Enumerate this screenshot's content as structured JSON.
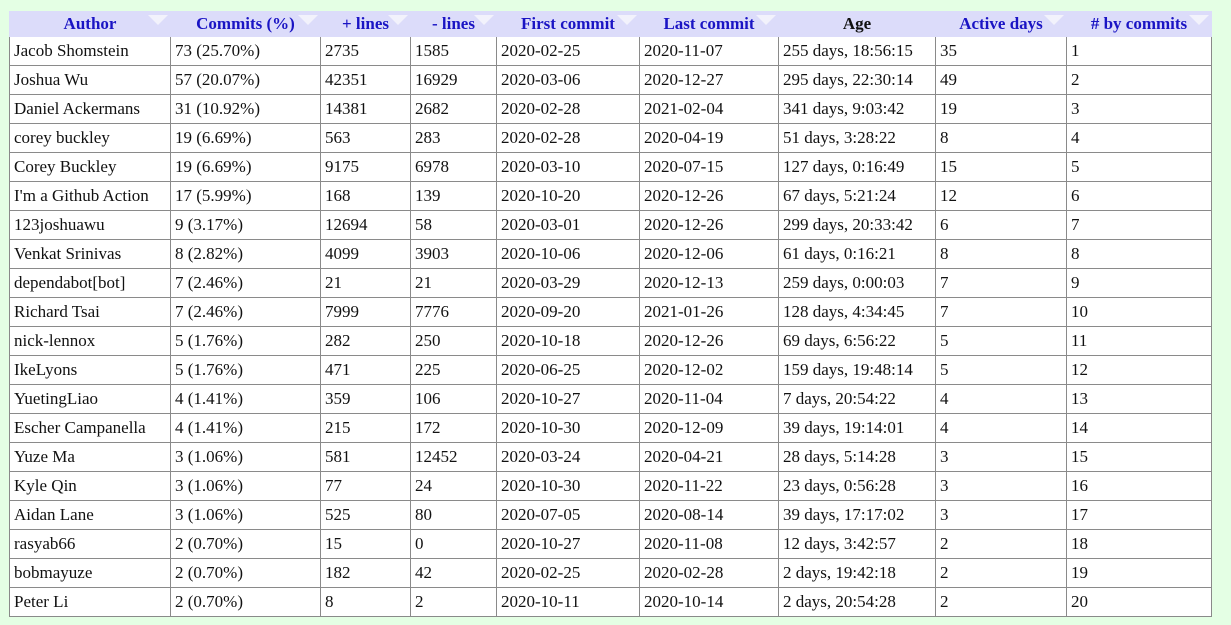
{
  "table": {
    "headers": [
      "Author",
      "Commits (%)",
      "+ lines",
      "- lines",
      "First commit",
      "Last commit",
      "Age",
      "Active days",
      "# by commits"
    ],
    "rows": [
      [
        "Jacob Shomstein",
        "73 (25.70%)",
        "2735",
        "1585",
        "2020-02-25",
        "2020-11-07",
        "255 days, 18:56:15",
        "35",
        "1"
      ],
      [
        "Joshua Wu",
        "57 (20.07%)",
        "42351",
        "16929",
        "2020-03-06",
        "2020-12-27",
        "295 days, 22:30:14",
        "49",
        "2"
      ],
      [
        "Daniel Ackermans",
        "31 (10.92%)",
        "14381",
        "2682",
        "2020-02-28",
        "2021-02-04",
        "341 days, 9:03:42",
        "19",
        "3"
      ],
      [
        "corey buckley",
        "19 (6.69%)",
        "563",
        "283",
        "2020-02-28",
        "2020-04-19",
        "51 days, 3:28:22",
        "8",
        "4"
      ],
      [
        "Corey Buckley",
        "19 (6.69%)",
        "9175",
        "6978",
        "2020-03-10",
        "2020-07-15",
        "127 days, 0:16:49",
        "15",
        "5"
      ],
      [
        "I'm a Github Action",
        "17 (5.99%)",
        "168",
        "139",
        "2020-10-20",
        "2020-12-26",
        "67 days, 5:21:24",
        "12",
        "6"
      ],
      [
        "123joshuawu",
        "9 (3.17%)",
        "12694",
        "58",
        "2020-03-01",
        "2020-12-26",
        "299 days, 20:33:42",
        "6",
        "7"
      ],
      [
        "Venkat Srinivas",
        "8 (2.82%)",
        "4099",
        "3903",
        "2020-10-06",
        "2020-12-06",
        "61 days, 0:16:21",
        "8",
        "8"
      ],
      [
        "dependabot[bot]",
        "7 (2.46%)",
        "21",
        "21",
        "2020-03-29",
        "2020-12-13",
        "259 days, 0:00:03",
        "7",
        "9"
      ],
      [
        "Richard Tsai",
        "7 (2.46%)",
        "7999",
        "7776",
        "2020-09-20",
        "2021-01-26",
        "128 days, 4:34:45",
        "7",
        "10"
      ],
      [
        "nick-lennox",
        "5 (1.76%)",
        "282",
        "250",
        "2020-10-18",
        "2020-12-26",
        "69 days, 6:56:22",
        "5",
        "11"
      ],
      [
        "IkeLyons",
        "5 (1.76%)",
        "471",
        "225",
        "2020-06-25",
        "2020-12-02",
        "159 days, 19:48:14",
        "5",
        "12"
      ],
      [
        "YuetingLiao",
        "4 (1.41%)",
        "359",
        "106",
        "2020-10-27",
        "2020-11-04",
        "7 days, 20:54:22",
        "4",
        "13"
      ],
      [
        "Escher Campanella",
        "4 (1.41%)",
        "215",
        "172",
        "2020-10-30",
        "2020-12-09",
        "39 days, 19:14:01",
        "4",
        "14"
      ],
      [
        "Yuze Ma",
        "3 (1.06%)",
        "581",
        "12452",
        "2020-03-24",
        "2020-04-21",
        "28 days, 5:14:28",
        "3",
        "15"
      ],
      [
        "Kyle Qin",
        "3 (1.06%)",
        "77",
        "24",
        "2020-10-30",
        "2020-11-22",
        "23 days, 0:56:28",
        "3",
        "16"
      ],
      [
        "Aidan Lane",
        "3 (1.06%)",
        "525",
        "80",
        "2020-07-05",
        "2020-08-14",
        "39 days, 17:17:02",
        "3",
        "17"
      ],
      [
        "rasyab66",
        "2 (0.70%)",
        "15",
        "0",
        "2020-10-27",
        "2020-11-08",
        "12 days, 3:42:57",
        "2",
        "18"
      ],
      [
        "bobmayuze",
        "2 (0.70%)",
        "182",
        "42",
        "2020-02-25",
        "2020-02-28",
        "2 days, 19:42:18",
        "2",
        "19"
      ],
      [
        "Peter Li",
        "2 (0.70%)",
        "8",
        "2",
        "2020-10-11",
        "2020-10-14",
        "2 days, 20:54:28",
        "2",
        "20"
      ]
    ]
  },
  "colors": {
    "background": "#e4ffe4",
    "header_bg": "#dcdcfa",
    "header_text": "#1a14c4"
  }
}
